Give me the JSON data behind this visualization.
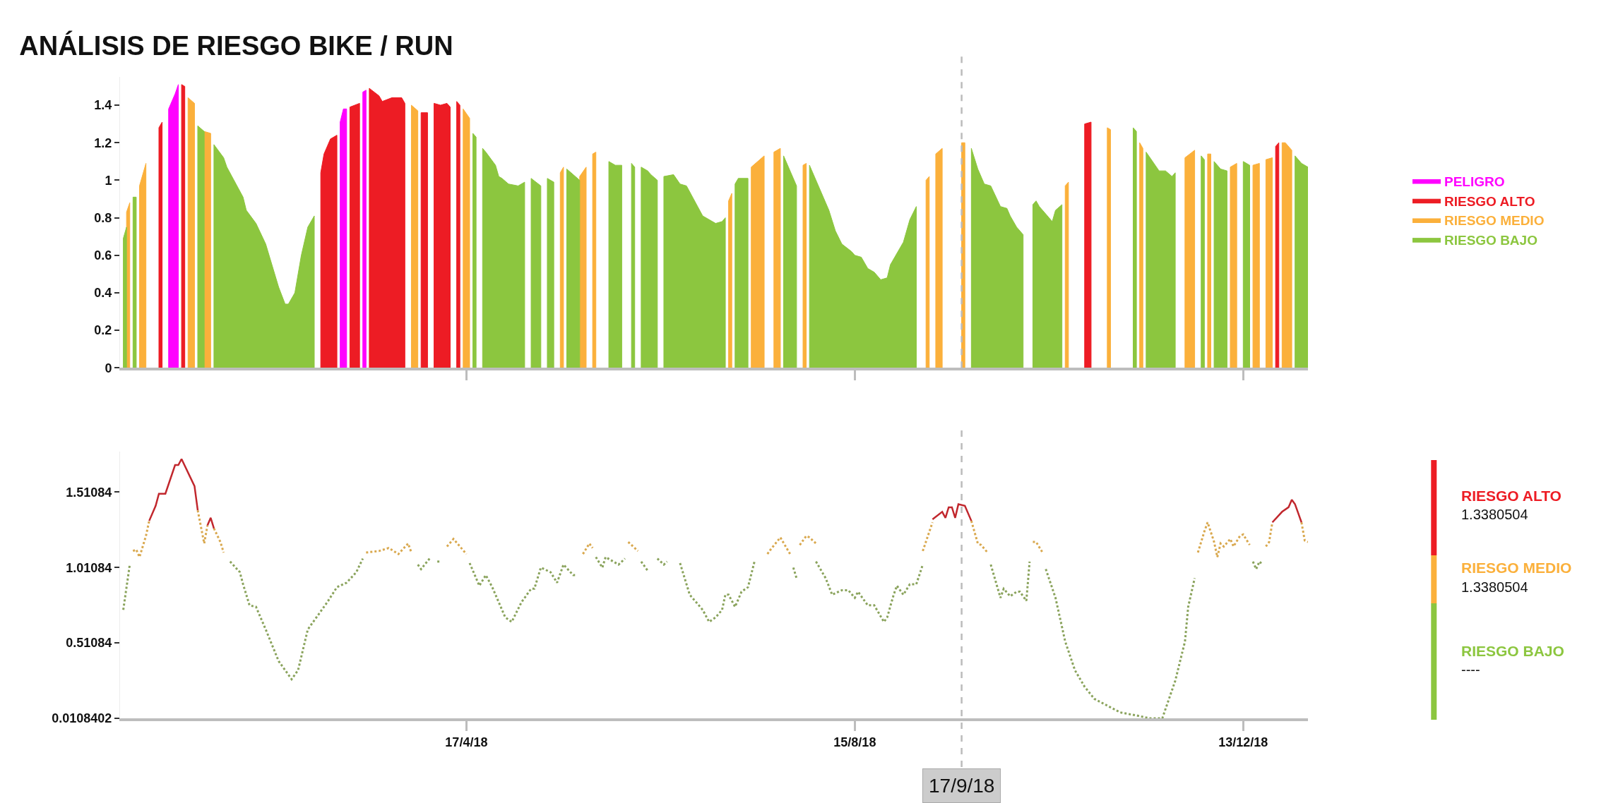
{
  "chart_data": [
    {
      "type": "area",
      "title": "ANÁLISIS DE RIESGO BIKE / RUN",
      "xlim": [
        "2017-12-31",
        "2019-01-02"
      ],
      "xticks": [
        {
          "value": "2018-04-17",
          "label": null
        },
        {
          "value": "2018-08-15",
          "label": null
        },
        {
          "value": "2018-12-13",
          "label": null
        }
      ],
      "ylim": [
        0,
        1.55
      ],
      "yticks": [
        0,
        0.2,
        0.4,
        0.6,
        0.8,
        1,
        1.2,
        1.4
      ],
      "tick_labels": "y",
      "legend": "right",
      "ref_lines": [
        {
          "axis": "x",
          "value": "2018-09-17",
          "line_style": "dashed",
          "color": "#bbbbbb"
        }
      ],
      "series": [
        {
          "name": "PELIGRO",
          "color": "#ff00ff",
          "x": [
            "2018-01-15",
            "2018-01-17",
            "2018-01-18",
            "2018-02-10",
            "2018-03-09",
            "2018-03-10",
            "2018-03-11",
            "2018-03-13",
            "2018-03-16",
            "2018-03-17"
          ],
          "values": [
            1.38,
            1.46,
            1.51,
            null,
            1.31,
            1.38,
            1.38,
            null,
            1.47,
            1.48
          ]
        },
        {
          "name": "RIESGO ALTO",
          "color": "#ed1c24",
          "x": [
            "2018-01-12",
            "2018-01-13",
            "2018-01-16",
            "2018-01-19",
            "2018-01-20",
            "2018-02-10",
            "2018-03-03",
            "2018-03-04",
            "2018-03-06",
            "2018-03-08",
            "2018-03-10",
            "2018-03-12",
            "2018-03-15",
            "2018-03-16",
            "2018-03-18",
            "2018-03-21",
            "2018-03-22",
            "2018-03-25",
            "2018-03-28",
            "2018-03-29",
            "2018-03-31",
            "2018-04-03",
            "2018-04-05",
            "2018-04-06",
            "2018-04-07",
            "2018-04-09",
            "2018-04-11",
            "2018-04-12",
            "2018-04-13",
            "2018-04-14",
            "2018-04-15",
            "2018-07-20",
            "2018-10-25",
            "2018-10-27",
            "2018-11-25",
            "2018-12-23",
            "2018-12-24"
          ],
          "values": [
            1.28,
            1.31,
            null,
            1.51,
            1.5,
            null,
            1.04,
            1.14,
            1.22,
            1.24,
            null,
            1.39,
            1.41,
            null,
            1.49,
            1.45,
            1.42,
            1.44,
            1.44,
            1.41,
            null,
            1.36,
            1.36,
            null,
            1.41,
            1.4,
            1.41,
            1.39,
            null,
            1.42,
            1.4,
            null,
            1.3,
            1.31,
            null,
            1.18,
            1.2
          ]
        },
        {
          "name": "RIESGO MEDIO",
          "color": "#fbb03b",
          "x": [
            "2018-01-02",
            "2018-01-03",
            "2018-01-05",
            "2018-01-06",
            "2018-01-08",
            "2018-01-15",
            "2018-01-21",
            "2018-01-23",
            "2018-01-24",
            "2018-01-26",
            "2018-01-28",
            "2018-03-01",
            "2018-03-31",
            "2018-04-02",
            "2018-04-09",
            "2018-04-16",
            "2018-04-18",
            "2018-05-01",
            "2018-05-16",
            "2018-05-17",
            "2018-05-19",
            "2018-05-22",
            "2018-05-24",
            "2018-05-25",
            "2018-05-26",
            "2018-05-27",
            "2018-06-15",
            "2018-07-07",
            "2018-07-08",
            "2018-07-11",
            "2018-07-14",
            "2018-07-16",
            "2018-07-18",
            "2018-07-19",
            "2018-07-21",
            "2018-07-23",
            "2018-07-26",
            "2018-07-30",
            "2018-07-31",
            "2018-08-20",
            "2018-09-06",
            "2018-09-07",
            "2018-09-08",
            "2018-09-09",
            "2018-09-11",
            "2018-09-14",
            "2018-09-17",
            "2018-09-18",
            "2018-10-05",
            "2018-10-19",
            "2018-10-20",
            "2018-10-26",
            "2018-11-01",
            "2018-11-02",
            "2018-11-06",
            "2018-11-11",
            "2018-11-12",
            "2018-11-18",
            "2018-11-25",
            "2018-11-28",
            "2018-11-30",
            "2018-12-02",
            "2018-12-03",
            "2018-12-06",
            "2018-12-09",
            "2018-12-11",
            "2018-12-14",
            "2018-12-16",
            "2018-12-18",
            "2018-12-19",
            "2018-12-20",
            "2018-12-22",
            "2018-12-23",
            "2018-12-25",
            "2018-12-26",
            "2018-12-28"
          ],
          "values": [
            0.83,
            0.88,
            null,
            0.97,
            1.09,
            null,
            1.44,
            1.41,
            null,
            1.26,
            1.25,
            null,
            1.4,
            1.37,
            null,
            1.38,
            1.33,
            null,
            1.04,
            1.07,
            null,
            1.02,
            1.07,
            null,
            1.14,
            1.15,
            null,
            0.89,
            0.93,
            null,
            1.07,
            1.1,
            1.13,
            null,
            1.15,
            1.17,
            null,
            1.08,
            1.09,
            null,
            1.0,
            1.02,
            null,
            1.14,
            1.17,
            null,
            1.2,
            1.2,
            null,
            0.97,
            0.99,
            null,
            1.28,
            1.27,
            null,
            1.2,
            1.17,
            null,
            1.12,
            1.16,
            null,
            1.14,
            1.14,
            null,
            1.07,
            1.09,
            null,
            1.08,
            1.09,
            null,
            1.11,
            1.12,
            null,
            1.2,
            1.2,
            1.16
          ]
        },
        {
          "name": "RIESGO BAJO",
          "color": "#8cc63f",
          "x": [
            "2018-01-01",
            "2018-01-02",
            "2018-01-03",
            "2018-01-04",
            "2018-01-05",
            "2018-01-15",
            "2018-01-24",
            "2018-01-26",
            "2018-01-27",
            "2018-01-29",
            "2018-02-01",
            "2018-02-02",
            "2018-02-07",
            "2018-02-08",
            "2018-02-11",
            "2018-02-14",
            "2018-02-18",
            "2018-02-20",
            "2018-02-21",
            "2018-02-23",
            "2018-02-25",
            "2018-02-27",
            "2018-03-01",
            "2018-04-01",
            "2018-04-19",
            "2018-04-20",
            "2018-04-21",
            "2018-04-22",
            "2018-04-23",
            "2018-04-26",
            "2018-04-27",
            "2018-04-28",
            "2018-04-30",
            "2018-05-03",
            "2018-05-05",
            "2018-05-06",
            "2018-05-07",
            "2018-05-10",
            "2018-05-11",
            "2018-05-12",
            "2018-05-14",
            "2018-05-16",
            "2018-05-18",
            "2018-05-22",
            "2018-05-26",
            "2018-05-31",
            "2018-06-02",
            "2018-06-04",
            "2018-06-05",
            "2018-06-07",
            "2018-06-08",
            "2018-06-09",
            "2018-06-10",
            "2018-06-12",
            "2018-06-13",
            "2018-06-15",
            "2018-06-16",
            "2018-06-17",
            "2018-06-20",
            "2018-06-22",
            "2018-06-24",
            "2018-06-29",
            "2018-07-03",
            "2018-07-05",
            "2018-07-06",
            "2018-07-07",
            "2018-07-09",
            "2018-07-10",
            "2018-07-13",
            "2018-07-18",
            "2018-07-24",
            "2018-07-26",
            "2018-07-28",
            "2018-07-30",
            "2018-08-01",
            "2018-08-07",
            "2018-08-09",
            "2018-08-11",
            "2018-08-14",
            "2018-08-15",
            "2018-08-17",
            "2018-08-19",
            "2018-08-21",
            "2018-08-23",
            "2018-08-25",
            "2018-08-26",
            "2018-08-30",
            "2018-09-01",
            "2018-09-03",
            "2018-09-12",
            "2018-09-20",
            "2018-09-22",
            "2018-09-24",
            "2018-09-26",
            "2018-09-29",
            "2018-10-01",
            "2018-10-02",
            "2018-10-04",
            "2018-10-06",
            "2018-10-07",
            "2018-10-09",
            "2018-10-10",
            "2018-10-11",
            "2018-10-14",
            "2018-10-15",
            "2018-10-16",
            "2018-10-18",
            "2018-10-30",
            "2018-11-09",
            "2018-11-10",
            "2018-11-11",
            "2018-11-13",
            "2018-11-17",
            "2018-11-19",
            "2018-11-21",
            "2018-11-22",
            "2018-11-26",
            "2018-11-30",
            "2018-12-01",
            "2018-12-02",
            "2018-12-04",
            "2018-12-06",
            "2018-12-08",
            "2018-12-10",
            "2018-12-13",
            "2018-12-15",
            "2018-12-22",
            "2018-12-29",
            "2018-12-31",
            "2019-01-02"
          ],
          "values": [
            0.69,
            0.75,
            null,
            0.91,
            0.91,
            null,
            1.29,
            1.26,
            null,
            1.19,
            1.12,
            1.07,
            0.91,
            0.84,
            0.77,
            0.66,
            0.43,
            0.34,
            0.34,
            0.4,
            0.6,
            0.75,
            0.81,
            null,
            1.25,
            1.23,
            null,
            1.17,
            1.15,
            1.08,
            1.02,
            1.01,
            0.98,
            0.97,
            0.99,
            null,
            1.01,
            0.97,
            null,
            1.01,
            0.99,
            null,
            1.06,
            1.0,
            null,
            1.1,
            1.08,
            1.08,
            null,
            1.09,
            1.07,
            null,
            1.07,
            1.05,
            1.03,
            1.0,
            null,
            1.02,
            1.03,
            0.98,
            0.97,
            0.81,
            0.77,
            0.78,
            0.8,
            null,
            0.98,
            1.01,
            1.01,
            null,
            1.13,
            1.05,
            0.97,
            null,
            1.08,
            0.84,
            0.73,
            0.66,
            0.62,
            0.6,
            0.59,
            0.53,
            0.51,
            0.47,
            0.48,
            0.55,
            0.67,
            0.79,
            0.86,
            null,
            1.17,
            1.06,
            0.98,
            0.97,
            0.86,
            0.85,
            0.81,
            0.75,
            0.71,
            null,
            0.87,
            0.89,
            0.86,
            0.8,
            0.78,
            0.84,
            0.87,
            null,
            1.28,
            1.26,
            null,
            1.15,
            1.05,
            1.05,
            1.02,
            1.04,
            null,
            1.13,
            1.11,
            null,
            1.1,
            1.06,
            1.05,
            null,
            1.1,
            1.08,
            null,
            1.13,
            1.09,
            1.07
          ]
        }
      ]
    },
    {
      "type": "line",
      "xlim": [
        "2017-12-31",
        "2019-01-02"
      ],
      "xticks": [
        {
          "value": "2018-04-17",
          "label": "17/4/18"
        },
        {
          "value": "2018-08-15",
          "label": "15/8/18"
        },
        {
          "value": "2018-12-13",
          "label": "13/12/18"
        }
      ],
      "ylim": [
        0.0108402,
        1.78
      ],
      "yticks": [
        0.0108402,
        0.51084,
        1.01084,
        1.51084
      ],
      "ref_lines": [
        {
          "axis": "x",
          "value": "2018-09-17",
          "label": "17/9/18",
          "line_style": "dashed",
          "color": "#bbbbbb"
        }
      ],
      "annotations": [
        "RIESGO ALTO",
        "1.3380504",
        "RIESGO MEDIO",
        "1.3380504",
        "RIESGO BAJO",
        "----"
      ],
      "series": [
        {
          "color": "#8aa35c",
          "line_style": "dotted",
          "x": [
            "2018-01-01",
            "2018-01-03",
            "2018-01-18",
            "2018-02-03",
            "2018-02-06",
            "2018-02-07",
            "2018-02-09",
            "2018-02-11",
            "2018-02-14",
            "2018-02-18",
            "2018-02-22",
            "2018-02-24",
            "2018-02-27",
            "2018-03-02",
            "2018-03-05",
            "2018-03-08",
            "2018-03-11",
            "2018-03-14",
            "2018-03-16",
            "2018-03-24",
            "2018-04-02",
            "2018-04-03",
            "2018-04-06",
            "2018-04-07",
            "2018-04-08",
            "2018-04-09",
            "2018-04-13",
            "2018-04-18",
            "2018-04-21",
            "2018-04-23",
            "2018-04-25",
            "2018-04-29",
            "2018-05-01",
            "2018-05-04",
            "2018-05-07",
            "2018-05-08",
            "2018-05-10",
            "2018-05-13",
            "2018-05-15",
            "2018-05-17",
            "2018-05-20",
            "2018-05-21",
            "2018-05-24",
            "2018-05-27",
            "2018-05-29",
            "2018-05-30",
            "2018-06-03",
            "2018-06-05",
            "2018-06-07",
            "2018-06-10",
            "2018-06-12",
            "2018-06-13",
            "2018-06-15",
            "2018-06-17",
            "2018-06-18",
            "2018-06-20",
            "2018-06-22",
            "2018-06-25",
            "2018-06-29",
            "2018-07-01",
            "2018-07-03",
            "2018-07-05",
            "2018-07-06",
            "2018-07-07",
            "2018-07-09",
            "2018-07-11",
            "2018-07-13",
            "2018-07-15",
            "2018-07-21",
            "2018-07-27",
            "2018-07-28",
            "2018-07-31",
            "2018-08-03",
            "2018-08-06",
            "2018-08-08",
            "2018-08-11",
            "2018-08-13",
            "2018-08-15",
            "2018-08-16",
            "2018-08-19",
            "2018-08-21",
            "2018-08-24",
            "2018-08-25",
            "2018-08-27",
            "2018-08-28",
            "2018-08-30",
            "2018-09-01",
            "2018-09-03",
            "2018-09-05",
            "2018-09-15",
            "2018-09-26",
            "2018-09-29",
            "2018-09-30",
            "2018-10-02",
            "2018-10-04",
            "2018-10-05",
            "2018-10-07",
            "2018-10-08",
            "2018-10-10",
            "2018-10-13",
            "2018-10-16",
            "2018-10-19",
            "2018-10-22",
            "2018-10-25",
            "2018-10-28",
            "2018-11-05",
            "2018-11-10",
            "2018-11-14",
            "2018-11-18",
            "2018-11-22",
            "2018-11-25",
            "2018-11-26",
            "2018-11-28",
            "2018-12-07",
            "2018-12-16",
            "2018-12-17",
            "2018-12-18",
            "2018-12-19"
          ],
          "values": [
            0.73,
            1.03,
            null,
            1.05,
            0.98,
            0.9,
            0.76,
            0.75,
            0.6,
            0.39,
            0.27,
            0.33,
            0.6,
            0.69,
            0.78,
            0.88,
            0.91,
            0.98,
            1.07,
            null,
            1.03,
            1.0,
            1.08,
            null,
            1.05,
            1.05,
            null,
            1.04,
            0.89,
            0.96,
            0.88,
            0.68,
            0.65,
            0.78,
            0.87,
            0.87,
            1.01,
            0.98,
            0.91,
            1.03,
            0.96,
            0.96,
            null,
            1.08,
            1.01,
            1.08,
            1.03,
            1.07,
            null,
            1.05,
            0.99,
            null,
            1.07,
            1.03,
            1.05,
            null,
            1.04,
            0.83,
            0.73,
            0.65,
            0.68,
            0.73,
            0.83,
            0.83,
            0.75,
            0.85,
            0.88,
            1.05,
            null,
            1.01,
            0.94,
            null,
            1.05,
            0.94,
            0.83,
            0.86,
            0.86,
            0.81,
            0.85,
            0.76,
            0.76,
            0.65,
            0.68,
            0.83,
            0.89,
            0.83,
            0.9,
            0.9,
            1.03,
            null,
            1.03,
            0.81,
            0.87,
            0.82,
            0.85,
            0.85,
            0.79,
            1.05,
            null,
            1.0,
            0.81,
            0.52,
            0.33,
            0.22,
            0.14,
            0.05,
            0.03,
            0.011,
            0.011,
            0.26,
            0.52,
            0.75,
            0.94,
            null,
            1.05,
            1.0,
            1.05,
            1.03
          ]
        },
        {
          "color": "#d9a84e",
          "line_style": "dotted",
          "x": [
            "2018-01-04",
            "2018-01-05",
            "2018-01-06",
            "2018-01-08",
            "2018-01-09",
            "2018-01-16",
            "2018-01-24",
            "2018-01-26",
            "2018-01-27",
            "2018-01-28",
            "2018-01-29",
            "2018-01-31",
            "2018-02-01",
            "2018-02-20",
            "2018-03-17",
            "2018-03-21",
            "2018-03-24",
            "2018-03-27",
            "2018-03-30",
            "2018-03-31",
            "2018-04-05",
            "2018-04-11",
            "2018-04-13",
            "2018-04-17",
            "2018-05-05",
            "2018-05-23",
            "2018-05-25",
            "2018-05-26",
            "2018-06-01",
            "2018-06-06",
            "2018-06-09",
            "2018-07-01",
            "2018-07-19",
            "2018-07-20",
            "2018-07-23",
            "2018-07-26",
            "2018-07-27",
            "2018-07-29",
            "2018-07-31",
            "2018-08-01",
            "2018-08-03",
            "2018-08-20",
            "2018-09-05",
            "2018-09-08",
            "2018-09-14",
            "2018-09-20",
            "2018-09-22",
            "2018-09-23",
            "2018-09-25",
            "2018-10-01",
            "2018-10-09",
            "2018-10-10",
            "2018-10-12",
            "2018-11-05",
            "2018-11-29",
            "2018-12-01",
            "2018-12-02",
            "2018-12-04",
            "2018-12-05",
            "2018-12-06",
            "2018-12-07",
            "2018-12-09",
            "2018-12-10",
            "2018-12-12",
            "2018-12-13",
            "2018-12-15",
            "2018-12-17",
            "2018-12-20",
            "2018-12-21",
            "2018-12-22",
            "2018-12-26",
            "2018-12-31",
            "2019-01-01",
            "2019-01-02"
          ],
          "values": [
            1.12,
            1.13,
            1.08,
            1.22,
            1.32,
            null,
            1.39,
            1.17,
            1.29,
            null,
            1.27,
            1.18,
            1.11,
            null,
            1.11,
            1.12,
            1.14,
            1.1,
            1.17,
            1.11,
            null,
            1.15,
            1.2,
            1.1,
            null,
            1.1,
            1.17,
            1.14,
            null,
            1.18,
            1.12,
            null,
            1.1,
            1.13,
            1.21,
            1.1,
            null,
            1.16,
            1.22,
            1.21,
            1.17,
            null,
            1.12,
            1.31,
            null,
            1.32,
            1.17,
            1.16,
            1.11,
            null,
            1.18,
            1.18,
            1.11,
            null,
            1.11,
            1.25,
            1.31,
            1.18,
            1.08,
            1.17,
            1.15,
            1.2,
            1.15,
            1.22,
            1.23,
            1.16,
            null,
            1.15,
            1.18,
            1.31,
            null,
            1.31,
            1.19,
            1.18
          ]
        },
        {
          "color": "#c1272d",
          "line_style": "solid",
          "x": [
            "2018-01-09",
            "2018-01-11",
            "2018-01-12",
            "2018-01-14",
            "2018-01-17",
            "2018-01-18",
            "2018-01-19",
            "2018-01-23",
            "2018-01-24",
            "2018-01-25",
            "2018-01-27",
            "2018-01-28",
            "2018-01-29",
            "2018-05-01",
            "2018-09-08",
            "2018-09-11",
            "2018-09-12",
            "2018-09-13",
            "2018-09-14",
            "2018-09-15",
            "2018-09-16",
            "2018-09-18",
            "2018-09-20",
            "2018-11-01",
            "2018-12-22",
            "2018-12-25",
            "2018-12-27",
            "2018-12-28",
            "2018-12-29",
            "2018-12-30",
            "2018-12-31"
          ],
          "values": [
            1.32,
            1.42,
            1.5,
            1.5,
            1.69,
            1.69,
            1.73,
            1.55,
            1.39,
            null,
            1.29,
            1.34,
            1.27,
            null,
            1.33,
            1.38,
            1.34,
            1.41,
            1.41,
            1.34,
            1.43,
            1.42,
            1.32,
            null,
            1.31,
            1.38,
            1.41,
            1.46,
            1.43,
            1.37,
            1.31
          ]
        }
      ]
    }
  ]
}
